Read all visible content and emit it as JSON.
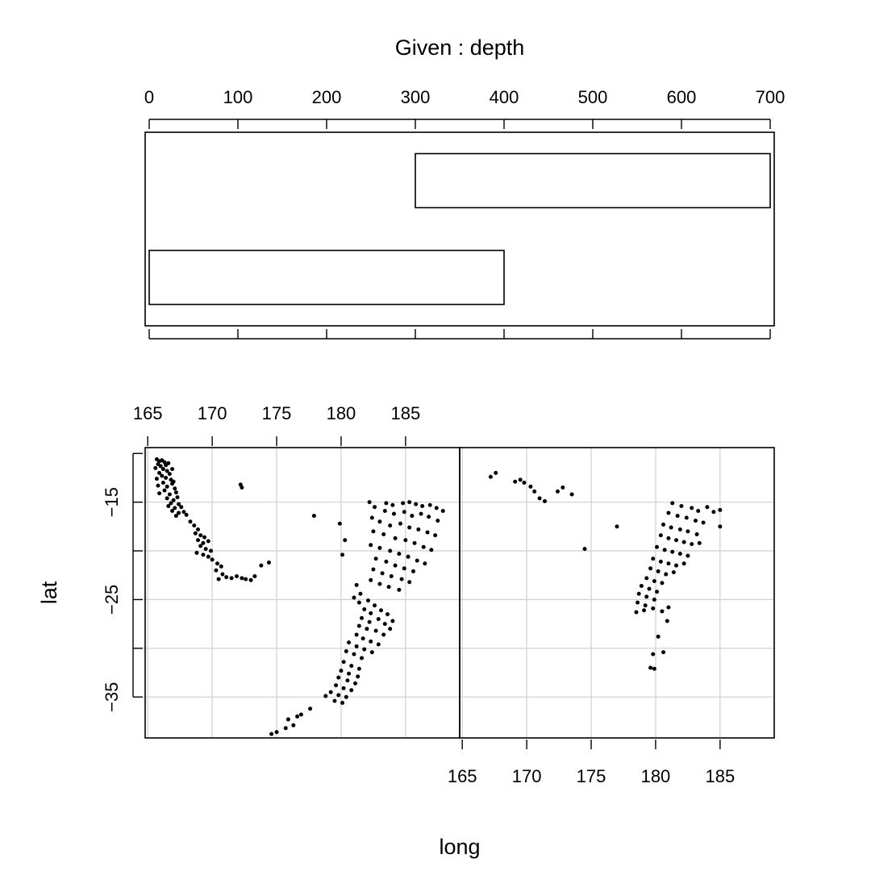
{
  "chart_data": {
    "type": "coplot",
    "given_panel": {
      "title": "Given : depth",
      "xlim": [
        0,
        700
      ],
      "ticks": [
        0,
        100,
        200,
        300,
        400,
        500,
        600,
        700
      ],
      "intervals": [
        [
          0,
          400
        ],
        [
          300,
          700
        ]
      ]
    },
    "scatter": {
      "type": "scatter",
      "xlabel": "long",
      "ylabel": "lat",
      "xlim": [
        164.8,
        189.2
      ],
      "ylim": [
        -39.2,
        -9.4
      ],
      "xticks": [
        165,
        170,
        175,
        180,
        185
      ],
      "yticks": [
        -15,
        -25,
        -35
      ],
      "ygrid": [
        -15,
        -20,
        -25,
        -30,
        -35
      ],
      "grid": true,
      "panels": [
        {
          "depth_interval": [
            0,
            400
          ],
          "points": [
            [
              165.7,
              -10.6
            ],
            [
              165.9,
              -10.8
            ],
            [
              166.1,
              -10.7
            ],
            [
              166.3,
              -10.9
            ],
            [
              165.8,
              -11.1
            ],
            [
              166.0,
              -11.3
            ],
            [
              166.4,
              -11.2
            ],
            [
              166.6,
              -11.0
            ],
            [
              165.6,
              -11.5
            ],
            [
              166.2,
              -11.6
            ],
            [
              166.5,
              -11.8
            ],
            [
              165.9,
              -12.0
            ],
            [
              166.7,
              -12.1
            ],
            [
              166.1,
              -12.3
            ],
            [
              166.9,
              -11.6
            ],
            [
              166.4,
              -12.5
            ],
            [
              165.7,
              -12.6
            ],
            [
              166.8,
              -12.7
            ],
            [
              166.2,
              -13.0
            ],
            [
              167.0,
              -12.9
            ],
            [
              165.8,
              -13.3
            ],
            [
              166.5,
              -13.4
            ],
            [
              166.9,
              -13.1
            ],
            [
              167.1,
              -13.6
            ],
            [
              166.3,
              -13.8
            ],
            [
              165.9,
              -14.1
            ],
            [
              166.7,
              -14.2
            ],
            [
              167.2,
              -14.0
            ],
            [
              166.5,
              -14.6
            ],
            [
              167.0,
              -14.8
            ],
            [
              167.3,
              -14.5
            ],
            [
              166.8,
              -15.1
            ],
            [
              167.4,
              -15.2
            ],
            [
              166.6,
              -15.4
            ],
            [
              167.1,
              -15.6
            ],
            [
              167.6,
              -15.5
            ],
            [
              166.9,
              -15.9
            ],
            [
              167.4,
              -16.1
            ],
            [
              167.8,
              -16.0
            ],
            [
              167.2,
              -16.4
            ],
            [
              168.0,
              -16.3
            ],
            [
              168.3,
              -17.0
            ],
            [
              168.6,
              -17.4
            ],
            [
              168.9,
              -17.8
            ],
            [
              168.7,
              -18.2
            ],
            [
              169.1,
              -18.4
            ],
            [
              169.4,
              -18.6
            ],
            [
              168.9,
              -18.9
            ],
            [
              169.3,
              -19.2
            ],
            [
              169.7,
              -19.0
            ],
            [
              169.1,
              -19.5
            ],
            [
              169.5,
              -19.8
            ],
            [
              169.9,
              -20.0
            ],
            [
              168.8,
              -20.2
            ],
            [
              169.3,
              -20.4
            ],
            [
              169.7,
              -20.6
            ],
            [
              170.0,
              -20.9
            ],
            [
              170.4,
              -21.3
            ],
            [
              170.7,
              -21.6
            ],
            [
              170.3,
              -22.0
            ],
            [
              170.8,
              -22.4
            ],
            [
              171.1,
              -22.7
            ],
            [
              170.5,
              -22.9
            ],
            [
              171.5,
              -22.8
            ],
            [
              171.9,
              -22.6
            ],
            [
              172.3,
              -22.8
            ],
            [
              172.6,
              -22.9
            ],
            [
              173.3,
              -22.6
            ],
            [
              173.0,
              -23.0
            ],
            [
              173.8,
              -21.5
            ],
            [
              174.4,
              -21.2
            ],
            [
              172.2,
              -13.2
            ],
            [
              172.3,
              -13.5
            ],
            [
              177.9,
              -16.4
            ],
            [
              179.9,
              -17.2
            ],
            [
              180.3,
              -18.9
            ],
            [
              180.1,
              -20.4
            ],
            [
              182.2,
              -15.0
            ],
            [
              182.6,
              -15.5
            ],
            [
              183.5,
              -15.1
            ],
            [
              184.0,
              -15.3
            ],
            [
              184.8,
              -15.1
            ],
            [
              185.3,
              -15.0
            ],
            [
              185.8,
              -15.2
            ],
            [
              186.3,
              -15.4
            ],
            [
              186.9,
              -15.3
            ],
            [
              187.4,
              -15.6
            ],
            [
              187.9,
              -15.9
            ],
            [
              183.4,
              -15.9
            ],
            [
              184.1,
              -16.2
            ],
            [
              184.9,
              -16.0
            ],
            [
              185.5,
              -16.4
            ],
            [
              186.2,
              -16.2
            ],
            [
              186.8,
              -16.5
            ],
            [
              187.5,
              -16.9
            ],
            [
              182.4,
              -16.6
            ],
            [
              183.0,
              -17.0
            ],
            [
              183.8,
              -17.4
            ],
            [
              184.6,
              -17.2
            ],
            [
              185.3,
              -17.6
            ],
            [
              186.0,
              -17.8
            ],
            [
              186.7,
              -18.1
            ],
            [
              187.3,
              -18.4
            ],
            [
              182.5,
              -18.0
            ],
            [
              183.3,
              -18.3
            ],
            [
              184.2,
              -18.7
            ],
            [
              185.0,
              -18.9
            ],
            [
              185.7,
              -19.2
            ],
            [
              186.4,
              -19.6
            ],
            [
              187.0,
              -19.9
            ],
            [
              182.3,
              -19.4
            ],
            [
              183.0,
              -19.7
            ],
            [
              183.8,
              -20.0
            ],
            [
              184.5,
              -20.3
            ],
            [
              185.2,
              -20.6
            ],
            [
              185.9,
              -21.0
            ],
            [
              186.5,
              -21.3
            ],
            [
              182.7,
              -20.8
            ],
            [
              183.5,
              -21.1
            ],
            [
              184.2,
              -21.5
            ],
            [
              184.9,
              -21.8
            ],
            [
              185.6,
              -22.1
            ],
            [
              182.5,
              -21.9
            ],
            [
              183.2,
              -22.3
            ],
            [
              183.9,
              -22.6
            ],
            [
              184.7,
              -22.9
            ],
            [
              185.3,
              -23.2
            ],
            [
              182.3,
              -23.0
            ],
            [
              183.0,
              -23.4
            ],
            [
              183.7,
              -23.7
            ],
            [
              184.5,
              -24.0
            ],
            [
              181.2,
              -23.5
            ],
            [
              181.5,
              -24.4
            ],
            [
              181.0,
              -24.8
            ],
            [
              181.4,
              -25.3
            ],
            [
              182.1,
              -25.1
            ],
            [
              182.6,
              -25.6
            ],
            [
              181.8,
              -26.0
            ],
            [
              182.3,
              -26.4
            ],
            [
              183.1,
              -26.1
            ],
            [
              183.6,
              -26.5
            ],
            [
              181.6,
              -26.9
            ],
            [
              182.2,
              -27.3
            ],
            [
              182.9,
              -27.0
            ],
            [
              183.4,
              -27.5
            ],
            [
              184.0,
              -27.2
            ],
            [
              181.4,
              -27.7
            ],
            [
              182.0,
              -28.0
            ],
            [
              182.7,
              -28.2
            ],
            [
              183.3,
              -28.6
            ],
            [
              183.8,
              -28.0
            ],
            [
              181.2,
              -28.6
            ],
            [
              181.7,
              -29.0
            ],
            [
              182.3,
              -29.3
            ],
            [
              182.9,
              -29.6
            ],
            [
              180.6,
              -29.4
            ],
            [
              181.2,
              -29.8
            ],
            [
              181.8,
              -30.1
            ],
            [
              182.4,
              -30.4
            ],
            [
              180.4,
              -30.3
            ],
            [
              181.0,
              -30.6
            ],
            [
              181.6,
              -31.0
            ],
            [
              180.2,
              -31.4
            ],
            [
              180.8,
              -31.8
            ],
            [
              181.4,
              -32.1
            ],
            [
              180.0,
              -32.3
            ],
            [
              180.6,
              -32.6
            ],
            [
              181.3,
              -32.9
            ],
            [
              179.8,
              -33.0
            ],
            [
              180.5,
              -33.3
            ],
            [
              181.1,
              -33.6
            ],
            [
              179.6,
              -33.8
            ],
            [
              180.2,
              -34.1
            ],
            [
              180.8,
              -34.3
            ],
            [
              179.2,
              -34.5
            ],
            [
              179.8,
              -34.8
            ],
            [
              180.4,
              -35.0
            ],
            [
              179.5,
              -35.4
            ],
            [
              180.1,
              -35.6
            ],
            [
              178.8,
              -34.9
            ],
            [
              177.6,
              -36.2
            ],
            [
              176.9,
              -36.8
            ],
            [
              176.6,
              -37.0
            ],
            [
              175.9,
              -37.3
            ],
            [
              176.3,
              -37.9
            ],
            [
              175.7,
              -38.2
            ],
            [
              175.0,
              -38.6
            ],
            [
              174.6,
              -38.8
            ]
          ]
        },
        {
          "depth_interval": [
            300,
            700
          ],
          "points": [
            [
              167.2,
              -12.4
            ],
            [
              167.6,
              -12.0
            ],
            [
              169.1,
              -12.9
            ],
            [
              169.5,
              -12.7
            ],
            [
              169.8,
              -13.0
            ],
            [
              170.3,
              -13.4
            ],
            [
              170.6,
              -13.9
            ],
            [
              171.0,
              -14.6
            ],
            [
              171.4,
              -14.9
            ],
            [
              172.4,
              -13.9
            ],
            [
              172.8,
              -13.5
            ],
            [
              173.5,
              -14.2
            ],
            [
              177.0,
              -17.5
            ],
            [
              174.5,
              -19.8
            ],
            [
              181.3,
              -15.1
            ],
            [
              182.0,
              -15.4
            ],
            [
              182.8,
              -15.6
            ],
            [
              183.3,
              -15.9
            ],
            [
              184.0,
              -15.5
            ],
            [
              184.5,
              -16.0
            ],
            [
              185.0,
              -15.8
            ],
            [
              181.0,
              -16.1
            ],
            [
              181.7,
              -16.4
            ],
            [
              182.4,
              -16.6
            ],
            [
              183.1,
              -16.9
            ],
            [
              183.7,
              -17.1
            ],
            [
              180.6,
              -17.3
            ],
            [
              181.2,
              -17.6
            ],
            [
              181.9,
              -17.8
            ],
            [
              182.5,
              -18.0
            ],
            [
              183.2,
              -18.3
            ],
            [
              185.0,
              -17.5
            ],
            [
              180.4,
              -18.4
            ],
            [
              181.0,
              -18.7
            ],
            [
              181.6,
              -18.9
            ],
            [
              182.2,
              -19.1
            ],
            [
              182.8,
              -19.3
            ],
            [
              183.4,
              -19.2
            ],
            [
              180.1,
              -19.6
            ],
            [
              180.7,
              -19.9
            ],
            [
              181.3,
              -20.1
            ],
            [
              181.9,
              -20.3
            ],
            [
              182.5,
              -20.5
            ],
            [
              179.8,
              -20.8
            ],
            [
              180.4,
              -21.1
            ],
            [
              181.0,
              -21.3
            ],
            [
              181.6,
              -21.5
            ],
            [
              182.2,
              -21.3
            ],
            [
              179.6,
              -21.8
            ],
            [
              180.2,
              -22.1
            ],
            [
              180.8,
              -22.4
            ],
            [
              181.4,
              -22.2
            ],
            [
              179.3,
              -22.8
            ],
            [
              179.9,
              -23.1
            ],
            [
              180.5,
              -23.3
            ],
            [
              178.9,
              -23.6
            ],
            [
              179.5,
              -23.9
            ],
            [
              180.1,
              -24.2
            ],
            [
              178.7,
              -24.4
            ],
            [
              179.3,
              -24.7
            ],
            [
              179.9,
              -25.0
            ],
            [
              178.6,
              -25.3
            ],
            [
              179.2,
              -25.6
            ],
            [
              179.8,
              -25.9
            ],
            [
              178.5,
              -26.3
            ],
            [
              179.1,
              -26.1
            ],
            [
              180.5,
              -26.2
            ],
            [
              181.0,
              -25.8
            ],
            [
              180.2,
              -28.8
            ],
            [
              179.8,
              -30.6
            ],
            [
              180.6,
              -30.4
            ],
            [
              179.6,
              -32.0
            ],
            [
              179.9,
              -32.1
            ],
            [
              180.9,
              -27.2
            ]
          ]
        }
      ]
    }
  }
}
